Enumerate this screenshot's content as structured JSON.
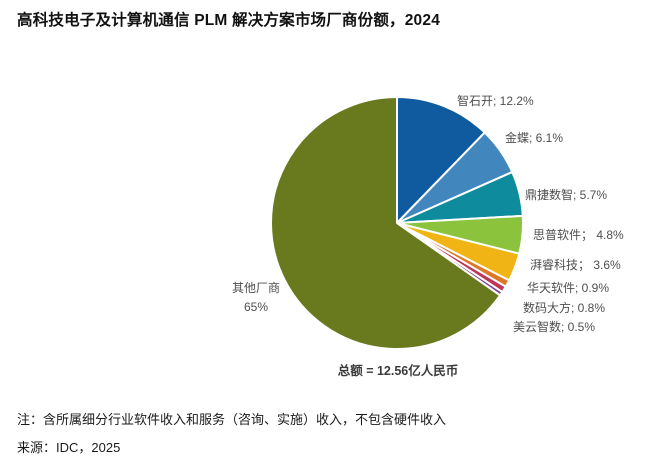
{
  "title": "高科技电子及计算机通信 PLM 解决方案市场厂商份额，2024",
  "footnote": "注：含所属细分行业软件收入和服务（咨询、实施）收入，不包含硬件收入",
  "source": "来源：IDC，2025",
  "chart_data": {
    "type": "pie",
    "title": "高科技电子及计算机通信 PLM 解决方案市场厂商份额，2024",
    "total_label": "总额 = 12.56亿人民币",
    "total_value": "12.56亿人民币",
    "unit": "%",
    "start_angle_deg": 0,
    "direction": "clockwise",
    "legend_position": "none (direct labels around pie)",
    "categories": [
      "智石开",
      "金蝶",
      "鼎捷数智",
      "思普软件",
      "湃睿科技",
      "华天软件",
      "数码大方",
      "美云智数",
      "其他厂商"
    ],
    "values": [
      12.2,
      6.1,
      5.7,
      4.8,
      3.6,
      0.9,
      0.8,
      0.5,
      65
    ],
    "labels": [
      "智石开; 12.2%",
      "金蝶; 6.1%",
      "鼎捷数智; 5.7%",
      "思普软件； 4.8%",
      "湃睿科技； 3.6%",
      "华天软件; 0.9%",
      "数码大方; 0.8%",
      "美云智数; 0.5%",
      "其他厂商\n65%"
    ],
    "colors": [
      "#105AA0",
      "#4187BE",
      "#0E8C9E",
      "#8CC33C",
      "#F0B414",
      "#DC7828",
      "#BE375A",
      "#7D4196",
      "#697A1E"
    ],
    "slice_border_color": "#FFFFFF"
  }
}
